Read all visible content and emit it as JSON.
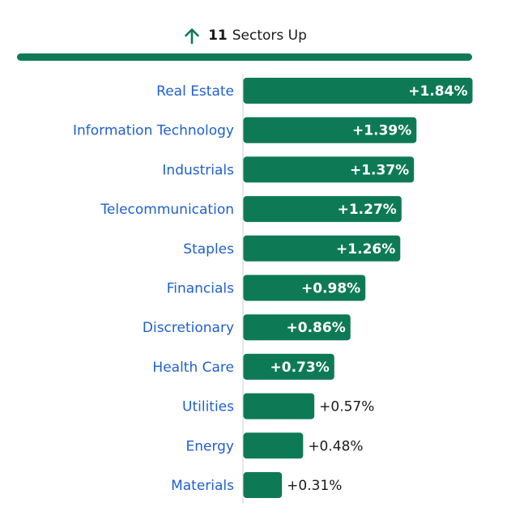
{
  "header": {
    "count": "11",
    "label": "Sectors Up",
    "icon": "arrow-up-icon"
  },
  "colors": {
    "bar": "#0e7a55",
    "category_text": "#1f5fcf",
    "value_inside": "#ffffff",
    "value_outside": "#1a1a1a",
    "axis": "#d0d0d0"
  },
  "chart_data": {
    "type": "bar",
    "orientation": "horizontal",
    "categories": [
      "Real Estate",
      "Information Technology",
      "Industrials",
      "Telecommunication",
      "Staples",
      "Financials",
      "Discretionary",
      "Health Care",
      "Utilities",
      "Energy",
      "Materials"
    ],
    "values": [
      1.84,
      1.39,
      1.37,
      1.27,
      1.26,
      0.98,
      0.86,
      0.73,
      0.57,
      0.48,
      0.31
    ],
    "labels": [
      "+1.84%",
      "+1.39%",
      "+1.37%",
      "+1.27%",
      "+1.26%",
      "+0.98%",
      "+0.86%",
      "+0.73%",
      "+0.57%",
      "+0.48%",
      "+0.31%"
    ],
    "title": "",
    "xlabel": "",
    "ylabel": "",
    "xlim": [
      0,
      1.84
    ],
    "grid": false,
    "legend": "none"
  }
}
